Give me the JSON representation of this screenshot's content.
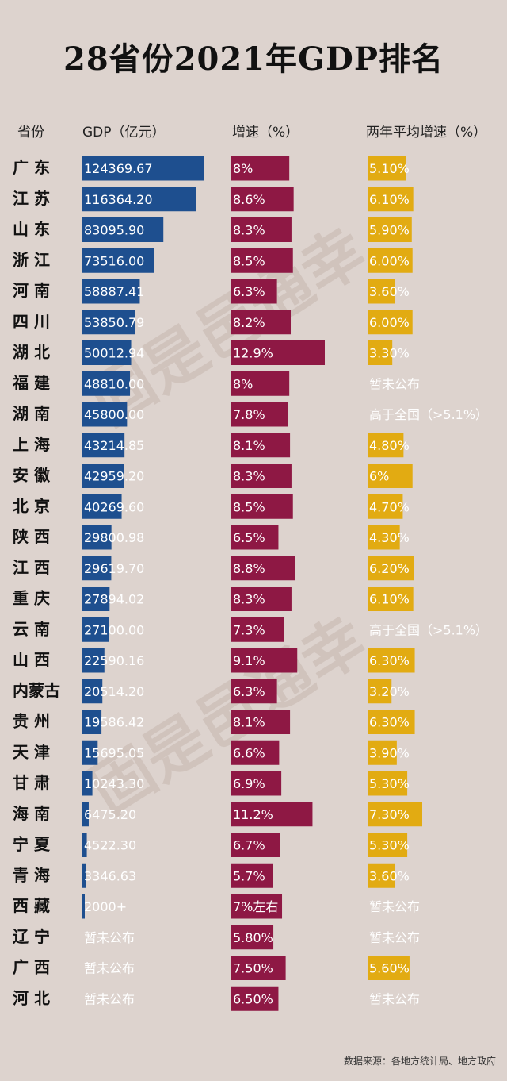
{
  "title": "28省份2021年GDP排名",
  "headers": {
    "province": "省份",
    "gdp": "GDP（亿元）",
    "growth": "增速（%）",
    "avg": "两年平均增速（%）"
  },
  "source": "数据来源：各地方统计局、地方政府",
  "colors": {
    "gdp": "#1e4f8f",
    "growth": "#8e1844",
    "avg": "#e2ab12",
    "background": "#ddd3ce"
  },
  "chart_data": {
    "type": "bar",
    "categories": [
      "广 东",
      "江 苏",
      "山 东",
      "浙 江",
      "河 南",
      "四 川",
      "湖 北",
      "福 建",
      "湖 南",
      "上 海",
      "安 徽",
      "北 京",
      "陕 西",
      "江 西",
      "重 庆",
      "云 南",
      "山 西",
      "内蒙古",
      "贵 州",
      "天 津",
      "甘 肃",
      "海 南",
      "宁 夏",
      "青 海",
      "西 藏",
      "辽 宁",
      "广 西",
      "河 北"
    ],
    "series": [
      {
        "name": "GDP（亿元）",
        "values": [
          124369.67,
          116364.2,
          83095.9,
          73516.0,
          58887.41,
          53850.79,
          50012.94,
          48810.0,
          45800.0,
          43214.85,
          42959.2,
          40269.6,
          29800.98,
          29619.7,
          27894.02,
          27100.0,
          22590.16,
          20514.2,
          19586.42,
          15695.05,
          10243.3,
          6475.2,
          4522.3,
          3346.63,
          2000,
          null,
          null,
          null
        ],
        "labels": [
          "124369.67",
          "116364.20",
          "83095.90",
          "73516.00",
          "58887.41",
          "53850.79",
          "50012.94",
          "48810.00",
          "45800.00",
          "43214.85",
          "42959.20",
          "40269.60",
          "29800.98",
          "29619.70",
          "27894.02",
          "27100.00",
          "22590.16",
          "20514.20",
          "19586.42",
          "15695.05",
          "10243.30",
          "6475.20",
          "4522.30",
          "3346.63",
          "2000+",
          "暂未公布",
          "暂未公布",
          "暂未公布"
        ]
      },
      {
        "name": "增速（%）",
        "values": [
          8,
          8.6,
          8.3,
          8.5,
          6.3,
          8.2,
          12.9,
          8,
          7.8,
          8.1,
          8.3,
          8.5,
          6.5,
          8.8,
          8.3,
          7.3,
          9.1,
          6.3,
          8.1,
          6.6,
          6.9,
          11.2,
          6.7,
          5.7,
          7,
          5.8,
          7.5,
          6.5
        ],
        "labels": [
          "8%",
          "8.6%",
          "8.3%",
          "8.5%",
          "6.3%",
          "8.2%",
          "12.9%",
          "8%",
          "7.8%",
          "8.1%",
          "8.3%",
          "8.5%",
          "6.5%",
          "8.8%",
          "8.3%",
          "7.3%",
          "9.1%",
          "6.3%",
          "8.1%",
          "6.6%",
          "6.9%",
          "11.2%",
          "6.7%",
          "5.7%",
          "7%左右",
          "5.80%",
          "7.50%",
          "6.50%"
        ]
      },
      {
        "name": "两年平均增速（%）",
        "values": [
          5.1,
          6.1,
          5.9,
          6.0,
          3.6,
          6.0,
          3.3,
          null,
          null,
          4.8,
          6,
          4.7,
          4.3,
          6.2,
          6.1,
          null,
          6.3,
          3.2,
          6.3,
          3.9,
          5.3,
          7.3,
          5.3,
          3.6,
          null,
          null,
          5.6,
          null
        ],
        "labels": [
          "5.10%",
          "6.10%",
          "5.90%",
          "6.00%",
          "3.60%",
          "6.00%",
          "3.30%",
          "暂未公布",
          "高于全国（>5.1%）",
          "4.80%",
          "6%",
          "4.70%",
          "4.30%",
          "6.20%",
          "6.10%",
          "高于全国（>5.1%）",
          "6.30%",
          "3.20%",
          "6.30%",
          "3.90%",
          "5.30%",
          "7.30%",
          "5.30%",
          "3.60%",
          "暂未公布",
          "暂未公布",
          "5.60%",
          "暂未公布"
        ]
      }
    ]
  }
}
